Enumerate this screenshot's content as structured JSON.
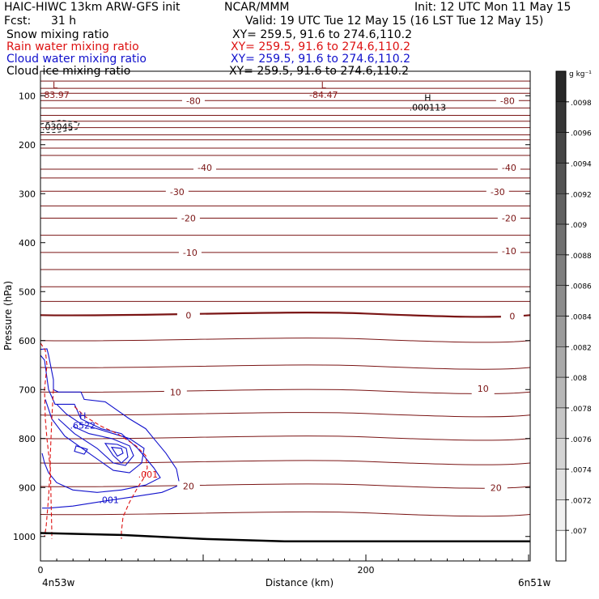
{
  "header": {
    "model": "HAIC-HIWC 13km ARW-GFS init",
    "org": "NCAR/MMM",
    "init": "Init: 12 UTC Mon 11 May 15",
    "fcst_label": "Fcst:",
    "fcst_value": "31 h",
    "valid": "Valid: 19 UTC Tue 12 May 15 (16 LST Tue 12 May 15)"
  },
  "legend": [
    {
      "name": "Snow mixing ratio",
      "xy": "XY= 259.5, 91.6 to 274.6,110.2",
      "color": "#000000"
    },
    {
      "name": "Rain water mixing ratio",
      "xy": "XY= 259.5, 91.6 to 274.6,110.2",
      "color": "#dd1111"
    },
    {
      "name": "Cloud water mixing ratio",
      "xy": "XY= 259.5, 91.6 to 274.6,110.2",
      "color": "#1111cc"
    },
    {
      "name": "Cloud ice mixing ratio",
      "xy": "XY= 259.5, 91.6 to 274.6,110.2",
      "color": "#000000"
    }
  ],
  "chart_data": {
    "type": "line",
    "xlabel": "Distance (km)",
    "ylabel": "Pressure (hPa)",
    "xlim": [
      0,
      301
    ],
    "ylim": [
      1050,
      50
    ],
    "x_ticks": [
      0,
      200
    ],
    "y_ticks": [
      100,
      200,
      300,
      400,
      500,
      600,
      700,
      800,
      900,
      1000
    ],
    "x_endpoints": [
      "4n53w",
      "6n51w"
    ],
    "temperature_isotherms": [
      {
        "label": "-80",
        "p": 110
      },
      {
        "label": "-40",
        "p": 250
      },
      {
        "label": "-30",
        "p": 295
      },
      {
        "label": "-20",
        "p": 350
      },
      {
        "label": "-10",
        "p": 420
      },
      {
        "label": "0",
        "p": 548
      },
      {
        "label": "10",
        "p": 705
      },
      {
        "label": "20",
        "p": 898
      }
    ],
    "isotherm_labels": [
      {
        "text": "-80",
        "x": 94,
        "p": 110
      },
      {
        "text": "-80",
        "x": 287,
        "p": 110
      },
      {
        "text": "-40",
        "x": 101,
        "p": 247
      },
      {
        "text": "-40",
        "x": 288,
        "p": 247
      },
      {
        "text": "-30",
        "x": 84,
        "p": 296
      },
      {
        "text": "-30",
        "x": 281,
        "p": 296
      },
      {
        "text": "-20",
        "x": 91,
        "p": 350
      },
      {
        "text": "-20",
        "x": 288,
        "p": 350
      },
      {
        "text": "-10",
        "x": 92,
        "p": 420
      },
      {
        "text": "-10",
        "x": 288,
        "p": 417
      },
      {
        "text": "0",
        "x": 91,
        "p": 548
      },
      {
        "text": "0",
        "x": 290,
        "p": 550
      },
      {
        "text": "10",
        "x": 83,
        "p": 705
      },
      {
        "text": "10",
        "x": 272,
        "p": 698
      },
      {
        "text": "20",
        "x": 91,
        "p": 897
      },
      {
        "text": "20",
        "x": 280,
        "p": 900
      }
    ],
    "extrema_labels": [
      {
        "mark": "L",
        "value": "-83.97",
        "x": 9,
        "p": 85,
        "color": "#8b1a1a"
      },
      {
        "mark": "L",
        "value": "-84.47",
        "x": 174,
        "p": 85,
        "color": "#8b1a1a"
      },
      {
        "mark": "H",
        "value": ".000113",
        "x": 238,
        "p": 110,
        "color": "#000000"
      },
      {
        "mark": "H",
        "value": ".6522",
        "x": 26,
        "p": 760,
        "color": "#1111cc"
      }
    ],
    "contour_labels": [
      {
        "text": ".03045",
        "x": 1,
        "p": 170,
        "color": "#000000"
      },
      {
        "text": ".001",
        "x": 60,
        "p": 880,
        "color": "#dd1111"
      },
      {
        "text": ".001",
        "x": 36,
        "p": 932,
        "color": "#1111cc"
      }
    ],
    "terrain_surface": [
      {
        "x": 0,
        "p": 993
      },
      {
        "x": 50,
        "p": 997
      },
      {
        "x": 100,
        "p": 1005
      },
      {
        "x": 150,
        "p": 1010
      },
      {
        "x": 200,
        "p": 1010
      },
      {
        "x": 250,
        "p": 1010
      },
      {
        "x": 301,
        "p": 1010
      }
    ],
    "colorbar": {
      "unit": "g kg⁻¹",
      "labels": [
        ".0098",
        ".0096",
        ".0094",
        ".0092",
        ".009",
        ".0088",
        ".0086",
        ".0084",
        ".0082",
        ".008",
        ".0078",
        ".0076",
        ".0074",
        ".0072",
        ".007"
      ]
    }
  }
}
